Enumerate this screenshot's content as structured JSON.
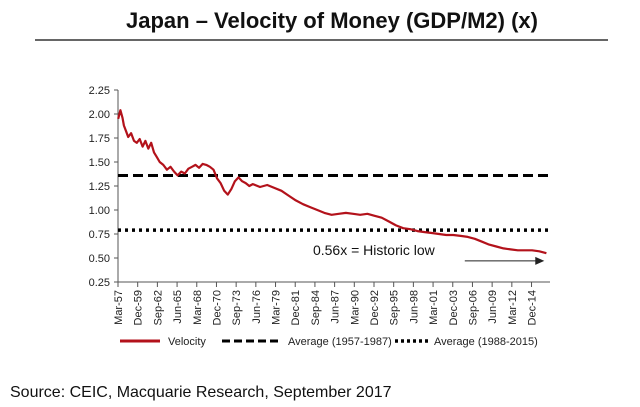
{
  "chart_data": {
    "type": "line",
    "title": "Japan – Velocity of Money (GDP/M2) (x)",
    "xlabel": "",
    "ylabel": "",
    "ylim": [
      0.25,
      2.25
    ],
    "yticks": [
      "2.25",
      "2.00",
      "1.75",
      "1.50",
      "1.25",
      "1.00",
      "0.75",
      "0.50",
      "0.25"
    ],
    "xtick_labels": [
      "Mar-57",
      "Dec-59",
      "Sep-62",
      "Jun-65",
      "Mar-68",
      "Dec-70",
      "Sep-73",
      "Jun-76",
      "Mar-79",
      "Dec-81",
      "Sep-84",
      "Jun-87",
      "Mar-90",
      "Dec-92",
      "Sep-95",
      "Jun-98",
      "Mar-01",
      "Dec-03",
      "Sep-06",
      "Jun-09",
      "Mar-12",
      "Dec-14"
    ],
    "xlim": [
      1957.17,
      2017.5
    ],
    "series": [
      {
        "name": "Velocity",
        "color": "#b3121b",
        "style": "solid",
        "x": [
          1957.2,
          1957.5,
          1957.8,
          1958.0,
          1958.3,
          1958.6,
          1959.0,
          1959.4,
          1959.8,
          1960.2,
          1960.6,
          1961.0,
          1961.4,
          1961.8,
          1962.2,
          1962.6,
          1963.0,
          1963.5,
          1964.0,
          1964.5,
          1965.0,
          1965.5,
          1966.0,
          1966.5,
          1967.0,
          1967.5,
          1968.0,
          1968.5,
          1969.0,
          1969.5,
          1970.0,
          1970.5,
          1971.0,
          1971.5,
          1972.0,
          1972.5,
          1973.0,
          1973.5,
          1974.0,
          1974.5,
          1975.0,
          1975.5,
          1976.0,
          1977.0,
          1978.0,
          1979.0,
          1980.0,
          1981.0,
          1982.0,
          1983.0,
          1984.0,
          1985.0,
          1986.0,
          1987.0,
          1988.0,
          1989.0,
          1990.0,
          1991.0,
          1992.0,
          1993.0,
          1994.0,
          1995.0,
          1996.0,
          1997.0,
          1998.0,
          1999.0,
          2000.0,
          2001.0,
          2002.0,
          2003.0,
          2004.0,
          2005.0,
          2006.0,
          2007.0,
          2008.0,
          2009.0,
          2010.0,
          2011.0,
          2012.0,
          2013.0,
          2014.0,
          2015.0,
          2016.0,
          2017.0
        ],
        "values": [
          1.95,
          2.04,
          1.96,
          1.88,
          1.82,
          1.76,
          1.8,
          1.72,
          1.7,
          1.74,
          1.66,
          1.72,
          1.64,
          1.7,
          1.6,
          1.55,
          1.5,
          1.47,
          1.42,
          1.45,
          1.4,
          1.36,
          1.4,
          1.38,
          1.43,
          1.45,
          1.47,
          1.44,
          1.48,
          1.47,
          1.45,
          1.42,
          1.33,
          1.28,
          1.2,
          1.16,
          1.22,
          1.3,
          1.34,
          1.3,
          1.28,
          1.25,
          1.27,
          1.24,
          1.26,
          1.23,
          1.2,
          1.15,
          1.1,
          1.06,
          1.03,
          1.0,
          0.97,
          0.95,
          0.96,
          0.97,
          0.96,
          0.95,
          0.96,
          0.94,
          0.92,
          0.88,
          0.84,
          0.81,
          0.8,
          0.78,
          0.77,
          0.76,
          0.75,
          0.74,
          0.74,
          0.73,
          0.72,
          0.7,
          0.67,
          0.64,
          0.62,
          0.6,
          0.59,
          0.58,
          0.58,
          0.58,
          0.57,
          0.55
        ]
      },
      {
        "name": "Average (1957-1987)",
        "color": "#000000",
        "style": "dashed",
        "value": 1.36
      },
      {
        "name": "Average (1988-2015)",
        "color": "#000000",
        "style": "dotted",
        "value": 0.79
      }
    ],
    "annotations": [
      {
        "text": "0.56x = Historic low",
        "x": 1984.4,
        "y": 0.53
      }
    ],
    "arrow": {
      "x_start": 2005.6,
      "x_end": 2016.7,
      "y": 0.47
    },
    "legend": {
      "position": "bottom"
    },
    "grid": false
  },
  "footer": {
    "source": "Source: CEIC, Macquarie Research, September 2017"
  }
}
